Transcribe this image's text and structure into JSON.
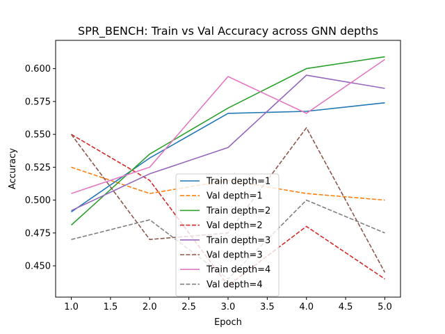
{
  "chart_data": {
    "type": "line",
    "title": "SPR_BENCH: Train vs Val Accuracy across GNN depths",
    "xlabel": "Epoch",
    "ylabel": "Accuracy",
    "x": [
      1,
      2,
      3,
      4,
      5
    ],
    "xticks": [
      "1.0",
      "1.5",
      "2.0",
      "2.5",
      "3.0",
      "3.5",
      "4.0",
      "4.5",
      "5.0"
    ],
    "yticks": [
      "0.450",
      "0.475",
      "0.500",
      "0.525",
      "0.550",
      "0.575",
      "0.600"
    ],
    "xlim": [
      0.8,
      5.2
    ],
    "ylim": [
      0.4262,
      0.6215
    ],
    "grid": false,
    "legend_position": "lower center",
    "series": [
      {
        "name": "Train depth=1",
        "values": [
          0.491,
          0.532,
          0.566,
          0.5675,
          0.574
        ],
        "color": "#1f77b4",
        "dashed": false
      },
      {
        "name": "Val depth=1",
        "values": [
          0.525,
          0.505,
          0.515,
          0.505,
          0.5
        ],
        "color": "#ff7f0e",
        "dashed": true
      },
      {
        "name": "Train depth=2",
        "values": [
          0.481,
          0.535,
          0.57,
          0.6,
          0.609
        ],
        "color": "#2ca02c",
        "dashed": false
      },
      {
        "name": "Val depth=2",
        "values": [
          0.55,
          0.515,
          0.435,
          0.48,
          0.44
        ],
        "color": "#d62728",
        "dashed": true
      },
      {
        "name": "Train depth=3",
        "values": [
          0.492,
          0.52,
          0.54,
          0.595,
          0.585
        ],
        "color": "#9467bd",
        "dashed": false
      },
      {
        "name": "Val depth=3",
        "values": [
          0.55,
          0.47,
          0.475,
          0.555,
          0.445
        ],
        "color": "#8c564b",
        "dashed": true
      },
      {
        "name": "Train depth=4",
        "values": [
          0.505,
          0.525,
          0.594,
          0.566,
          0.607
        ],
        "color": "#e377c2",
        "dashed": false
      },
      {
        "name": "Val depth=4",
        "values": [
          0.47,
          0.485,
          0.44,
          0.5,
          0.475
        ],
        "color": "#7f7f7f",
        "dashed": true
      }
    ]
  }
}
